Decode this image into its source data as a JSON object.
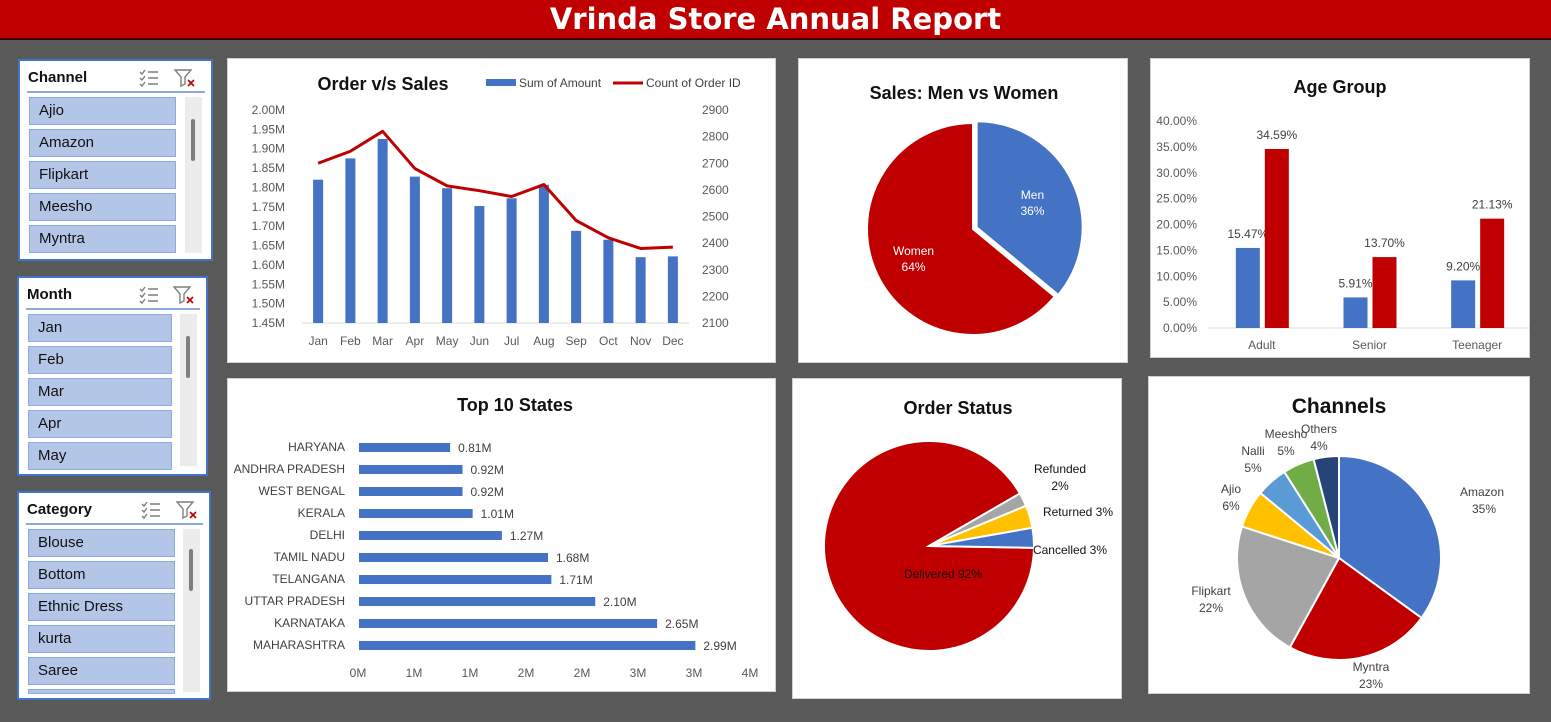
{
  "banner": {
    "title": "Vrinda Store Annual Report",
    "color": "#c00000"
  },
  "colors": {
    "blue": "#4472c4",
    "red": "#c00000",
    "yellow": "#ffc000",
    "gray": "#a5a5a5",
    "lightblue": "#5b9bd5",
    "green": "#70ad47",
    "navy": "#264478"
  },
  "slicers": [
    {
      "title": "Channel",
      "items": [
        "Ajio",
        "Amazon",
        "Flipkart",
        "Meesho",
        "Myntra"
      ]
    },
    {
      "title": "Month",
      "items": [
        "Jan",
        "Feb",
        "Mar",
        "Apr",
        "May"
      ]
    },
    {
      "title": "Category",
      "items": [
        "Blouse",
        "Bottom",
        "Ethnic Dress",
        "kurta",
        "Saree"
      ]
    }
  ],
  "chart_data": [
    {
      "type": "bar",
      "title": "Order v/s Sales",
      "categories": [
        "Jan",
        "Feb",
        "Mar",
        "Apr",
        "May",
        "Jun",
        "Jul",
        "Aug",
        "Sep",
        "Oct",
        "Nov",
        "Dec"
      ],
      "series": [
        {
          "name": "Sum of Amount",
          "type": "bar",
          "axis": "left",
          "values": [
            1.82,
            1.875,
            1.925,
            1.828,
            1.798,
            1.752,
            1.772,
            1.807,
            1.688,
            1.665,
            1.62,
            1.622
          ]
        },
        {
          "name": "Count of Order ID",
          "type": "line",
          "axis": "right",
          "values": [
            2700,
            2745,
            2820,
            2680,
            2615,
            2597,
            2575,
            2620,
            2485,
            2420,
            2380,
            2385
          ]
        }
      ],
      "ylim": [
        1.45,
        2.0
      ],
      "yticks": [
        "1.45M",
        "1.50M",
        "1.55M",
        "1.60M",
        "1.65M",
        "1.70M",
        "1.75M",
        "1.80M",
        "1.85M",
        "1.90M",
        "1.95M",
        "2.00M"
      ],
      "y2lim": [
        2100,
        2900
      ],
      "y2ticks": [
        "2100",
        "2200",
        "2300",
        "2400",
        "2500",
        "2600",
        "2700",
        "2800",
        "2900"
      ],
      "legend": "top-right"
    },
    {
      "type": "pie",
      "title": "Sales: Men vs Women",
      "slices": [
        {
          "label": "Men",
          "value": 36,
          "text": "36%"
        },
        {
          "label": "Women",
          "value": 64,
          "text": "64%"
        }
      ]
    },
    {
      "type": "bar",
      "title": "Age Group",
      "categories": [
        "Adult",
        "Senior",
        "Teenager"
      ],
      "series": [
        {
          "values": [
            15.47,
            5.91,
            9.2
          ],
          "labels": [
            "15.47%",
            "5.91%",
            "9.20%"
          ]
        },
        {
          "values": [
            34.59,
            13.7,
            21.13
          ],
          "labels": [
            "34.59%",
            "13.70%",
            "21.13%"
          ]
        }
      ],
      "ylim": [
        0,
        40
      ],
      "yticks": [
        "0.00%",
        "5.00%",
        "10.00%",
        "15.00%",
        "20.00%",
        "25.00%",
        "30.00%",
        "35.00%",
        "40.00%"
      ]
    },
    {
      "type": "bar",
      "orientation": "horizontal",
      "title": "Top 10 States",
      "categories": [
        "HARYANA",
        "ANDHRA PRADESH",
        "WEST BENGAL",
        "KERALA",
        "DELHI",
        "TAMIL NADU",
        "TELANGANA",
        "UTTAR PRADESH",
        "KARNATAKA",
        "MAHARASHTRA"
      ],
      "values": [
        0.81,
        0.92,
        0.92,
        1.01,
        1.27,
        1.68,
        1.71,
        2.1,
        2.65,
        2.99
      ],
      "labels": [
        "0.81M",
        "0.92M",
        "0.92M",
        "1.01M",
        "1.27M",
        "1.68M",
        "1.71M",
        "2.10M",
        "2.65M",
        "2.99M"
      ],
      "xlim": [
        0,
        3.5
      ],
      "xticks": [
        "0M",
        "1M",
        "1M",
        "2M",
        "2M",
        "3M",
        "3M",
        "4M"
      ]
    },
    {
      "type": "pie",
      "title": "Order Status",
      "slices": [
        {
          "label": "Delivered",
          "value": 92,
          "text": "Delivered 92%"
        },
        {
          "label": "Refunded",
          "value": 2,
          "text": "2%"
        },
        {
          "label": "Returned",
          "value": 3,
          "text": "Returned 3%"
        },
        {
          "label": "Cancelled",
          "value": 3,
          "text": "Cancelled 3%"
        }
      ]
    },
    {
      "type": "pie",
      "title": "Channels",
      "slices": [
        {
          "label": "Amazon",
          "value": 35,
          "text": "35%"
        },
        {
          "label": "Myntra",
          "value": 23,
          "text": "23%"
        },
        {
          "label": "Flipkart",
          "value": 22,
          "text": "22%"
        },
        {
          "label": "Ajio",
          "value": 6,
          "text": "6%"
        },
        {
          "label": "Nalli",
          "value": 5,
          "text": "5%"
        },
        {
          "label": "Meesho",
          "value": 5,
          "text": "5%"
        },
        {
          "label": "Others",
          "value": 4,
          "text": "4%"
        }
      ]
    }
  ]
}
